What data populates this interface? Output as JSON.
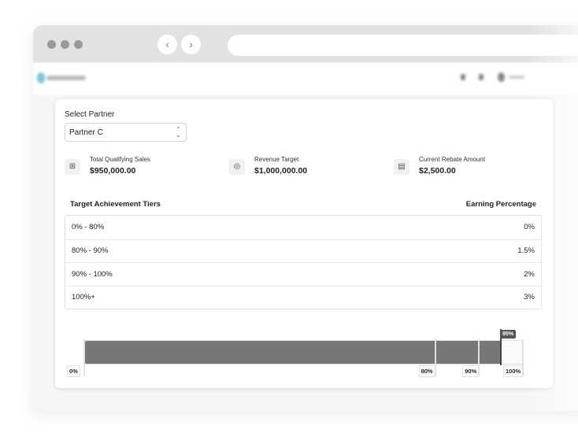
{
  "form": {
    "select_label": "Select Partner",
    "selected_partner": "Partner C"
  },
  "stats": [
    {
      "title": "Total Qualifying Sales",
      "value": "$950,000.00",
      "icon": "table-icon"
    },
    {
      "title": "Revenue Target",
      "value": "$1,000,000.00",
      "icon": "target-icon"
    },
    {
      "title": "Current Rebate Amount",
      "value": "$2,500.00",
      "icon": "receipt-icon"
    }
  ],
  "tiers": {
    "header_tier": "Target Achievement Tiers",
    "header_pct": "Earning Percentage",
    "rows": [
      {
        "range": "0% - 80%",
        "pct": "0%"
      },
      {
        "range": "80% - 90%",
        "pct": "1.5%"
      },
      {
        "range": "90% - 100%",
        "pct": "2%"
      },
      {
        "range": "100%+",
        "pct": "3%"
      }
    ]
  },
  "progress": {
    "achievement_percent": 95,
    "achievement_label": "95%",
    "ticks": [
      {
        "value": 0,
        "label": "0%"
      },
      {
        "value": 80,
        "label": "80%"
      },
      {
        "value": 90,
        "label": "90%"
      },
      {
        "value": 100,
        "label": "100%"
      }
    ],
    "fill_color": "#777777"
  }
}
